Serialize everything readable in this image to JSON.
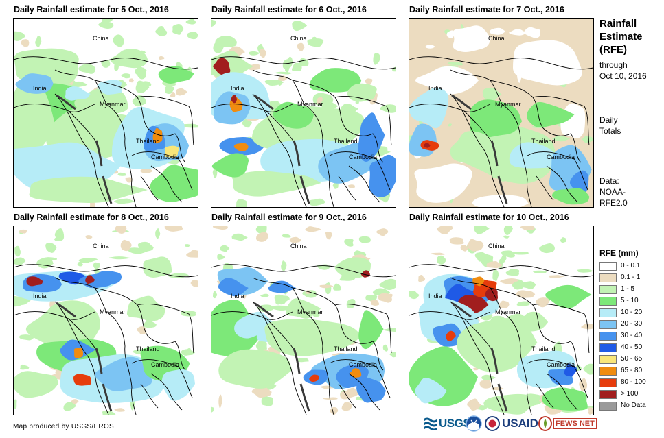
{
  "panels": [
    {
      "title": "Daily Rainfall estimate for 5 Oct., 2016",
      "scene": "d5"
    },
    {
      "title": "Daily Rainfall estimate for 6 Oct., 2016",
      "scene": "d6"
    },
    {
      "title": "Daily Rainfall estimate for 7 Oct., 2016",
      "scene": "d7"
    },
    {
      "title": "Daily Rainfall estimate for 8 Oct., 2016",
      "scene": "d8"
    },
    {
      "title": "Daily Rainfall estimate for 9 Oct., 2016",
      "scene": "d9"
    },
    {
      "title": "Daily Rainfall estimate for 10 Oct., 2016",
      "scene": "d10"
    }
  ],
  "place_labels": {
    "china": "China",
    "india": "India",
    "myanmar": "Myanmar",
    "thailand": "Thailand",
    "cambodia": "Cambodia"
  },
  "side": {
    "title_line1": "Rainfall",
    "title_line2": "Estimate",
    "title_line3": "(RFE)",
    "through": "through",
    "date": "Oct 10, 2016",
    "daily": "Daily",
    "totals": "Totals",
    "data_label": "Data:",
    "source1": "NOAA-",
    "source2": "RFE2.0"
  },
  "legend": {
    "title": "RFE (mm)",
    "items": [
      {
        "label": "0 - 0.1",
        "color": "#ffffff"
      },
      {
        "label": "0.1 - 1",
        "color": "#ecdcc0"
      },
      {
        "label": "1 - 5",
        "color": "#c2f3b4"
      },
      {
        "label": "5 - 10",
        "color": "#7de879"
      },
      {
        "label": "10 - 20",
        "color": "#b6ecf7"
      },
      {
        "label": "20 - 30",
        "color": "#7cc4f3"
      },
      {
        "label": "30 - 40",
        "color": "#4692ee"
      },
      {
        "label": "40 - 50",
        "color": "#1f5ae6"
      },
      {
        "label": "50 - 65",
        "color": "#f9e67a"
      },
      {
        "label": "65 - 80",
        "color": "#f08c10"
      },
      {
        "label": "80 - 100",
        "color": "#e63c0c"
      },
      {
        "label": "> 100",
        "color": "#a11e1e"
      },
      {
        "label": "No Data",
        "color": "#9a9a9a"
      }
    ]
  },
  "credit": "Map produced by USGS/EROS",
  "logos": {
    "usgs": "USGS",
    "usaid": "USAID",
    "fewsnet": "FEWS NET"
  }
}
